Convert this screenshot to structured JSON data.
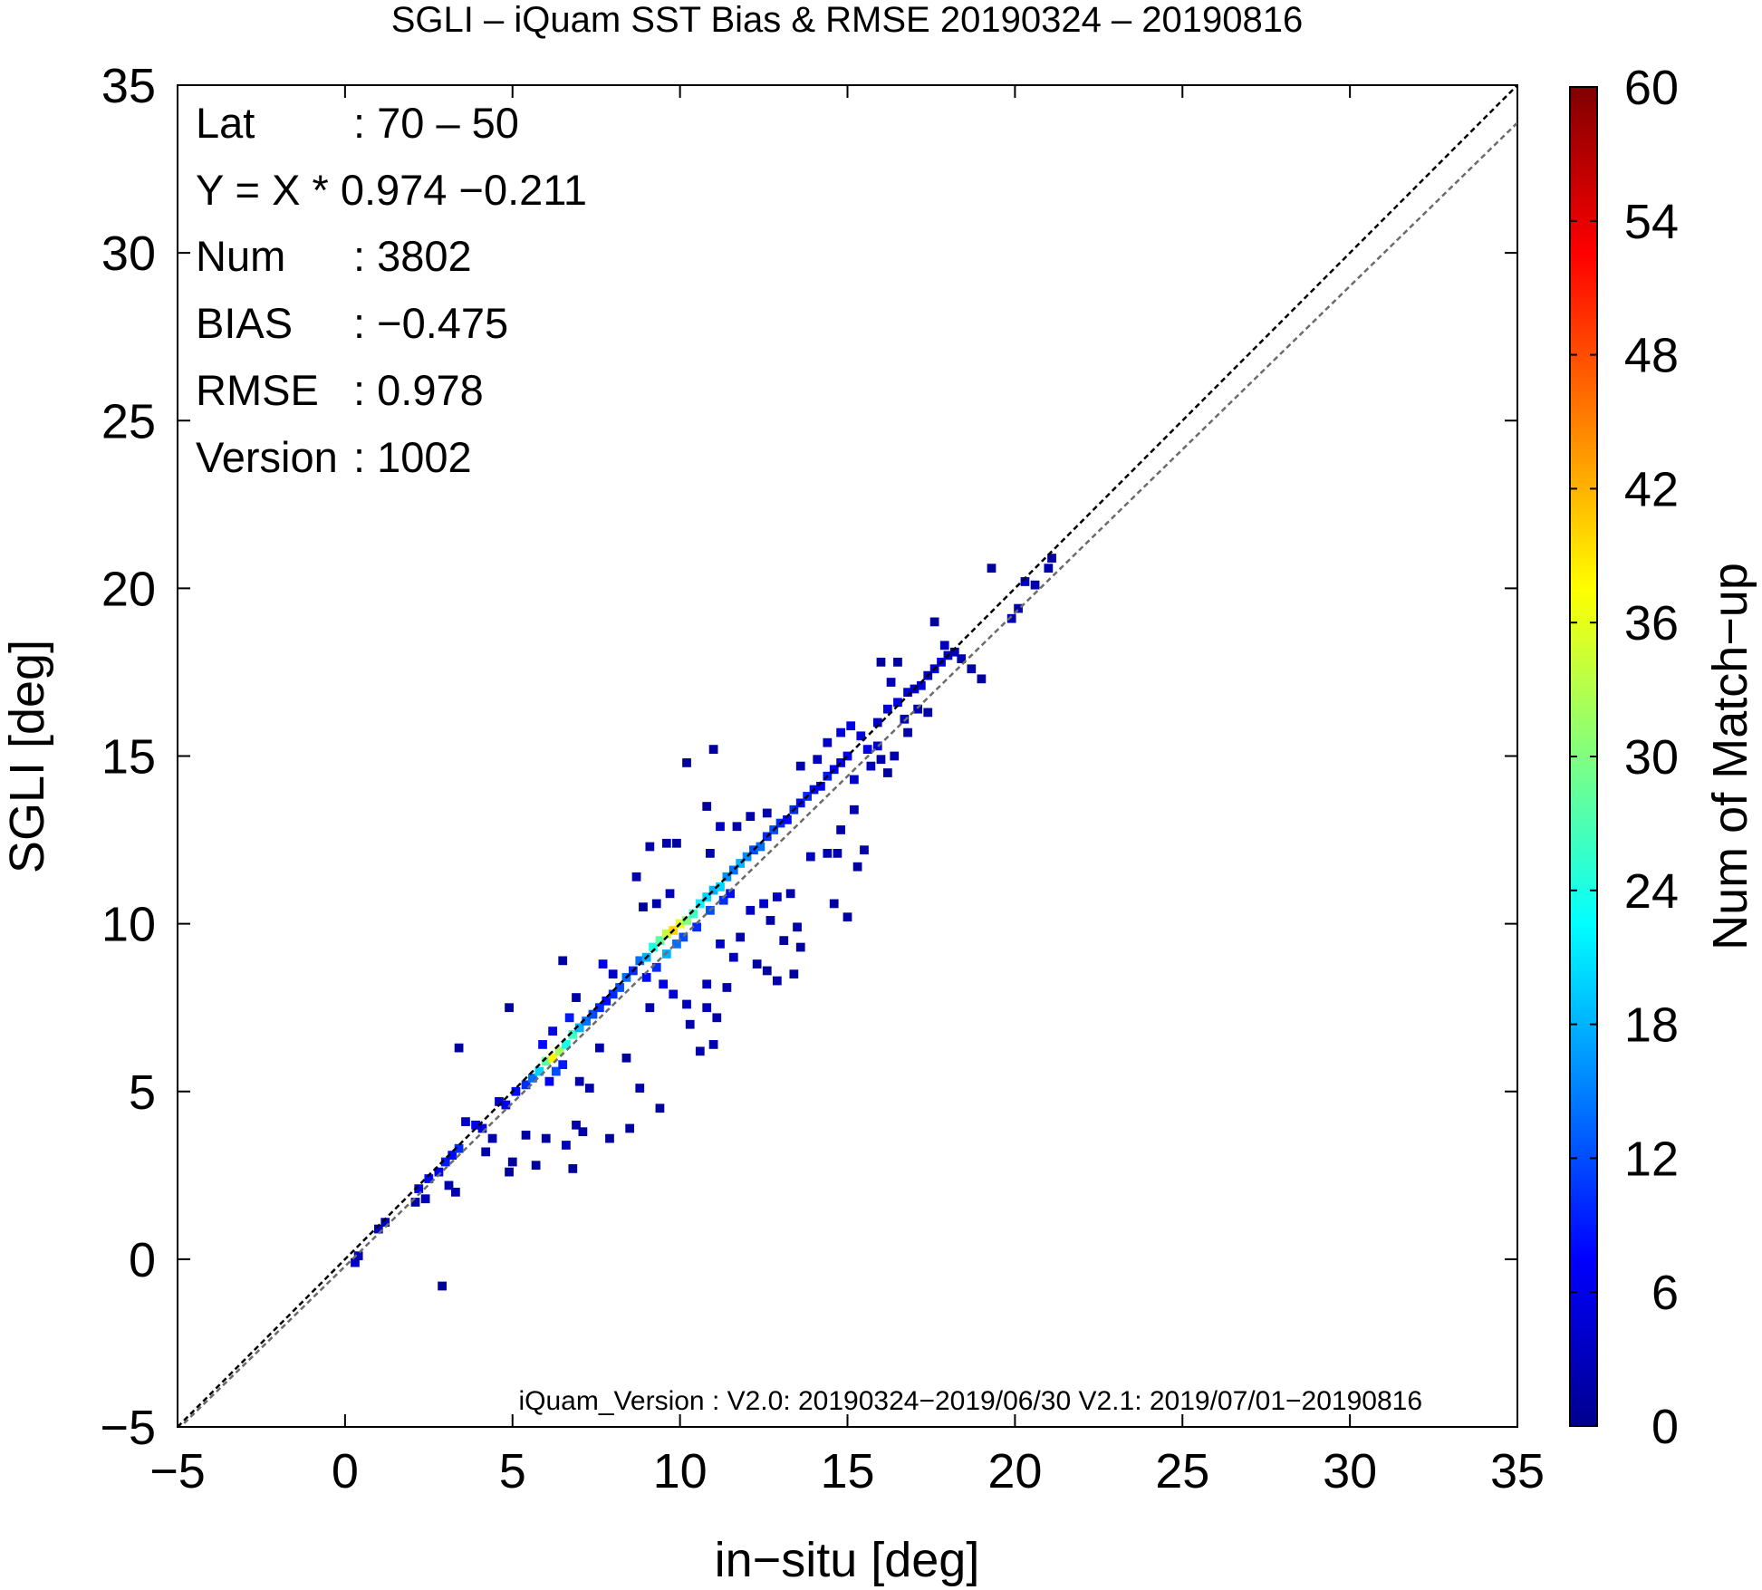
{
  "chart_data": {
    "type": "heatmap",
    "title": "SGLI – iQuam  SST Bias & RMSE 20190324 – 20190816",
    "xlabel": "in−situ [deg]",
    "ylabel": "SGLI [deg]",
    "xlim": [
      -5,
      35
    ],
    "ylim": [
      -5,
      35
    ],
    "x_ticks": [
      -5,
      0,
      5,
      10,
      15,
      20,
      25,
      30,
      35
    ],
    "y_ticks": [
      -5,
      0,
      5,
      10,
      15,
      20,
      25,
      30,
      35
    ],
    "x_tick_labels": [
      "−5",
      "0",
      "5",
      "10",
      "15",
      "20",
      "25",
      "30",
      "35"
    ],
    "y_tick_labels": [
      "−5",
      "0",
      "5",
      "10",
      "15",
      "20",
      "25",
      "30",
      "35"
    ],
    "bin_size": 0.25,
    "stats": [
      {
        "label": "Lat",
        "value": ": 70 – 50"
      },
      {
        "label": "Y = X * 0.974 −0.211",
        "value": ""
      },
      {
        "label": "Num",
        "value": ": 3802"
      },
      {
        "label": "BIAS",
        "value": ": −0.475"
      },
      {
        "label": "RMSE",
        "value": ": 0.978"
      },
      {
        "label": "Version",
        "value": ": 1002"
      }
    ],
    "regression": {
      "slope": 0.974,
      "intercept": -0.211,
      "line_color": "#6b6b6b",
      "dash": true
    },
    "identity_line": {
      "slope": 1,
      "intercept": 0,
      "line_color": "#000000",
      "dash": true
    },
    "footnote": "iQuam_Version : V2.0: 20190324−2019/06/30 V2.1: 2019/07/01−20190816",
    "colorbar": {
      "label": "Num of Match−up",
      "min": 0,
      "max": 60,
      "ticks": [
        0,
        6,
        12,
        18,
        24,
        30,
        36,
        42,
        48,
        54,
        60
      ],
      "colors": [
        "#00008f",
        "#0000ff",
        "#0080ff",
        "#00ffff",
        "#80ff80",
        "#ffff00",
        "#ff8000",
        "#ff0000",
        "#800000"
      ]
    },
    "points": [
      {
        "x": 0.3,
        "y": -0.1,
        "count": 4
      },
      {
        "x": 0.4,
        "y": 0.1,
        "count": 3
      },
      {
        "x": 1.0,
        "y": 0.9,
        "count": 4
      },
      {
        "x": 1.2,
        "y": 1.1,
        "count": 3
      },
      {
        "x": 2.9,
        "y": -0.8,
        "count": 1
      },
      {
        "x": 2.2,
        "y": 2.1,
        "count": 6
      },
      {
        "x": 2.5,
        "y": 2.4,
        "count": 8
      },
      {
        "x": 2.8,
        "y": 2.6,
        "count": 7
      },
      {
        "x": 3.0,
        "y": 2.9,
        "count": 9
      },
      {
        "x": 3.2,
        "y": 3.1,
        "count": 8
      },
      {
        "x": 3.4,
        "y": 3.3,
        "count": 10
      },
      {
        "x": 3.1,
        "y": 2.2,
        "count": 2
      },
      {
        "x": 3.3,
        "y": 2.0,
        "count": 2
      },
      {
        "x": 2.4,
        "y": 1.8,
        "count": 3
      },
      {
        "x": 2.1,
        "y": 1.7,
        "count": 2
      },
      {
        "x": 3.6,
        "y": 4.1,
        "count": 4
      },
      {
        "x": 3.9,
        "y": 4.0,
        "count": 6
      },
      {
        "x": 4.1,
        "y": 3.9,
        "count": 5
      },
      {
        "x": 3.4,
        "y": 6.3,
        "count": 1
      },
      {
        "x": 4.2,
        "y": 3.2,
        "count": 2
      },
      {
        "x": 4.4,
        "y": 3.6,
        "count": 2
      },
      {
        "x": 4.9,
        "y": 2.6,
        "count": 1
      },
      {
        "x": 5.1,
        "y": 5.0,
        "count": 8
      },
      {
        "x": 5.4,
        "y": 5.2,
        "count": 10
      },
      {
        "x": 4.8,
        "y": 4.6,
        "count": 7
      },
      {
        "x": 4.6,
        "y": 4.7,
        "count": 4
      },
      {
        "x": 4.9,
        "y": 7.5,
        "count": 1
      },
      {
        "x": 5.6,
        "y": 5.4,
        "count": 14
      },
      {
        "x": 5.8,
        "y": 5.6,
        "count": 20
      },
      {
        "x": 6.0,
        "y": 5.9,
        "count": 28
      },
      {
        "x": 6.2,
        "y": 6.0,
        "count": 38
      },
      {
        "x": 6.4,
        "y": 6.2,
        "count": 32
      },
      {
        "x": 6.6,
        "y": 6.4,
        "count": 24
      },
      {
        "x": 6.8,
        "y": 6.7,
        "count": 26
      },
      {
        "x": 7.0,
        "y": 6.9,
        "count": 18
      },
      {
        "x": 7.2,
        "y": 7.1,
        "count": 14
      },
      {
        "x": 6.3,
        "y": 5.6,
        "count": 12
      },
      {
        "x": 6.5,
        "y": 5.8,
        "count": 9
      },
      {
        "x": 6.1,
        "y": 5.3,
        "count": 7
      },
      {
        "x": 5.9,
        "y": 6.4,
        "count": 8
      },
      {
        "x": 6.2,
        "y": 6.8,
        "count": 6
      },
      {
        "x": 6.7,
        "y": 7.2,
        "count": 9
      },
      {
        "x": 7.4,
        "y": 7.3,
        "count": 12
      },
      {
        "x": 7.6,
        "y": 7.5,
        "count": 10
      },
      {
        "x": 7.8,
        "y": 7.7,
        "count": 8
      },
      {
        "x": 8.0,
        "y": 7.9,
        "count": 10
      },
      {
        "x": 8.2,
        "y": 8.1,
        "count": 12
      },
      {
        "x": 8.4,
        "y": 8.4,
        "count": 14
      },
      {
        "x": 8.6,
        "y": 8.6,
        "count": 10
      },
      {
        "x": 7.0,
        "y": 5.3,
        "count": 2
      },
      {
        "x": 7.3,
        "y": 5.1,
        "count": 2
      },
      {
        "x": 7.6,
        "y": 6.3,
        "count": 2
      },
      {
        "x": 6.9,
        "y": 4.0,
        "count": 2
      },
      {
        "x": 6.6,
        "y": 3.4,
        "count": 3
      },
      {
        "x": 7.1,
        "y": 3.8,
        "count": 1
      },
      {
        "x": 6.8,
        "y": 2.7,
        "count": 1
      },
      {
        "x": 6.0,
        "y": 3.6,
        "count": 1
      },
      {
        "x": 5.4,
        "y": 3.7,
        "count": 1
      },
      {
        "x": 5.7,
        "y": 2.8,
        "count": 1
      },
      {
        "x": 5.0,
        "y": 2.9,
        "count": 1
      },
      {
        "x": 7.9,
        "y": 3.6,
        "count": 1
      },
      {
        "x": 8.8,
        "y": 5.1,
        "count": 2
      },
      {
        "x": 9.4,
        "y": 4.5,
        "count": 1
      },
      {
        "x": 8.5,
        "y": 3.9,
        "count": 1
      },
      {
        "x": 8.4,
        "y": 6.0,
        "count": 1
      },
      {
        "x": 6.5,
        "y": 8.9,
        "count": 1
      },
      {
        "x": 6.9,
        "y": 7.8,
        "count": 2
      },
      {
        "x": 7.7,
        "y": 8.8,
        "count": 6
      },
      {
        "x": 8.0,
        "y": 8.5,
        "count": 4
      },
      {
        "x": 8.8,
        "y": 8.9,
        "count": 14
      },
      {
        "x": 9.0,
        "y": 9.0,
        "count": 18
      },
      {
        "x": 9.2,
        "y": 9.3,
        "count": 24
      },
      {
        "x": 9.4,
        "y": 9.5,
        "count": 28
      },
      {
        "x": 9.6,
        "y": 9.7,
        "count": 34
      },
      {
        "x": 9.8,
        "y": 9.8,
        "count": 40
      },
      {
        "x": 10.0,
        "y": 10.0,
        "count": 36
      },
      {
        "x": 10.2,
        "y": 10.1,
        "count": 30
      },
      {
        "x": 10.4,
        "y": 10.3,
        "count": 26
      },
      {
        "x": 10.6,
        "y": 10.6,
        "count": 22
      },
      {
        "x": 10.8,
        "y": 10.8,
        "count": 20
      },
      {
        "x": 11.0,
        "y": 11.0,
        "count": 18
      },
      {
        "x": 11.2,
        "y": 11.1,
        "count": 20
      },
      {
        "x": 11.4,
        "y": 11.4,
        "count": 16
      },
      {
        "x": 11.6,
        "y": 11.6,
        "count": 14
      },
      {
        "x": 11.8,
        "y": 11.8,
        "count": 18
      },
      {
        "x": 12.0,
        "y": 12.0,
        "count": 16
      },
      {
        "x": 12.2,
        "y": 12.2,
        "count": 12
      },
      {
        "x": 12.4,
        "y": 12.3,
        "count": 14
      },
      {
        "x": 12.6,
        "y": 12.6,
        "count": 10
      },
      {
        "x": 12.8,
        "y": 12.8,
        "count": 12
      },
      {
        "x": 13.0,
        "y": 13.0,
        "count": 10
      },
      {
        "x": 13.2,
        "y": 13.1,
        "count": 8
      },
      {
        "x": 13.4,
        "y": 13.4,
        "count": 10
      },
      {
        "x": 13.6,
        "y": 13.6,
        "count": 8
      },
      {
        "x": 13.8,
        "y": 13.8,
        "count": 10
      },
      {
        "x": 14.0,
        "y": 14.0,
        "count": 8
      },
      {
        "x": 14.2,
        "y": 14.1,
        "count": 7
      },
      {
        "x": 14.4,
        "y": 14.4,
        "count": 9
      },
      {
        "x": 14.6,
        "y": 14.6,
        "count": 7
      },
      {
        "x": 14.8,
        "y": 14.8,
        "count": 6
      },
      {
        "x": 15.0,
        "y": 15.0,
        "count": 7
      },
      {
        "x": 9.6,
        "y": 9.1,
        "count": 18
      },
      {
        "x": 9.9,
        "y": 9.4,
        "count": 14
      },
      {
        "x": 10.1,
        "y": 9.6,
        "count": 12
      },
      {
        "x": 10.5,
        "y": 9.9,
        "count": 10
      },
      {
        "x": 10.9,
        "y": 10.4,
        "count": 12
      },
      {
        "x": 11.3,
        "y": 10.7,
        "count": 10
      },
      {
        "x": 11.5,
        "y": 10.9,
        "count": 8
      },
      {
        "x": 9.3,
        "y": 8.7,
        "count": 10
      },
      {
        "x": 9.0,
        "y": 8.4,
        "count": 8
      },
      {
        "x": 9.5,
        "y": 8.2,
        "count": 6
      },
      {
        "x": 9.8,
        "y": 7.9,
        "count": 4
      },
      {
        "x": 10.2,
        "y": 7.6,
        "count": 3
      },
      {
        "x": 9.1,
        "y": 7.5,
        "count": 2
      },
      {
        "x": 10.8,
        "y": 7.5,
        "count": 3
      },
      {
        "x": 11.1,
        "y": 7.2,
        "count": 2
      },
      {
        "x": 11.0,
        "y": 6.4,
        "count": 2
      },
      {
        "x": 10.6,
        "y": 6.2,
        "count": 2
      },
      {
        "x": 10.3,
        "y": 7.0,
        "count": 2
      },
      {
        "x": 10.8,
        "y": 8.2,
        "count": 3
      },
      {
        "x": 11.4,
        "y": 8.1,
        "count": 2
      },
      {
        "x": 11.6,
        "y": 9.0,
        "count": 3
      },
      {
        "x": 11.2,
        "y": 9.4,
        "count": 4
      },
      {
        "x": 11.8,
        "y": 9.6,
        "count": 2
      },
      {
        "x": 12.3,
        "y": 8.8,
        "count": 2
      },
      {
        "x": 12.6,
        "y": 8.6,
        "count": 1
      },
      {
        "x": 12.9,
        "y": 8.3,
        "count": 2
      },
      {
        "x": 13.4,
        "y": 8.5,
        "count": 1
      },
      {
        "x": 12.1,
        "y": 10.4,
        "count": 4
      },
      {
        "x": 12.5,
        "y": 10.6,
        "count": 4
      },
      {
        "x": 12.9,
        "y": 10.8,
        "count": 3
      },
      {
        "x": 13.3,
        "y": 10.9,
        "count": 2
      },
      {
        "x": 12.7,
        "y": 10.1,
        "count": 2
      },
      {
        "x": 13.5,
        "y": 9.9,
        "count": 2
      },
      {
        "x": 13.6,
        "y": 9.3,
        "count": 1
      },
      {
        "x": 13.1,
        "y": 9.5,
        "count": 1
      },
      {
        "x": 14.6,
        "y": 10.6,
        "count": 1
      },
      {
        "x": 15.0,
        "y": 10.2,
        "count": 1
      },
      {
        "x": 14.4,
        "y": 12.1,
        "count": 2
      },
      {
        "x": 13.9,
        "y": 12.0,
        "count": 3
      },
      {
        "x": 14.7,
        "y": 12.1,
        "count": 2
      },
      {
        "x": 15.5,
        "y": 12.2,
        "count": 2
      },
      {
        "x": 15.3,
        "y": 11.7,
        "count": 1
      },
      {
        "x": 15.2,
        "y": 13.4,
        "count": 2
      },
      {
        "x": 14.8,
        "y": 12.8,
        "count": 2
      },
      {
        "x": 8.9,
        "y": 10.5,
        "count": 1
      },
      {
        "x": 9.3,
        "y": 10.6,
        "count": 2
      },
      {
        "x": 9.7,
        "y": 10.9,
        "count": 3
      },
      {
        "x": 8.7,
        "y": 11.4,
        "count": 2
      },
      {
        "x": 9.1,
        "y": 12.3,
        "count": 2
      },
      {
        "x": 9.6,
        "y": 12.4,
        "count": 2
      },
      {
        "x": 9.9,
        "y": 12.4,
        "count": 1
      },
      {
        "x": 10.9,
        "y": 12.1,
        "count": 2
      },
      {
        "x": 11.2,
        "y": 12.9,
        "count": 3
      },
      {
        "x": 11.7,
        "y": 12.9,
        "count": 2
      },
      {
        "x": 12.1,
        "y": 13.2,
        "count": 2
      },
      {
        "x": 12.6,
        "y": 13.3,
        "count": 2
      },
      {
        "x": 10.8,
        "y": 13.5,
        "count": 1
      },
      {
        "x": 10.2,
        "y": 14.8,
        "count": 1
      },
      {
        "x": 11.0,
        "y": 15.2,
        "count": 1
      },
      {
        "x": 13.6,
        "y": 14.7,
        "count": 2
      },
      {
        "x": 14.1,
        "y": 14.9,
        "count": 3
      },
      {
        "x": 14.4,
        "y": 15.4,
        "count": 4
      },
      {
        "x": 14.8,
        "y": 15.7,
        "count": 5
      },
      {
        "x": 15.1,
        "y": 15.9,
        "count": 6
      },
      {
        "x": 15.4,
        "y": 15.6,
        "count": 5
      },
      {
        "x": 15.6,
        "y": 15.2,
        "count": 6
      },
      {
        "x": 15.9,
        "y": 15.3,
        "count": 4
      },
      {
        "x": 15.2,
        "y": 14.3,
        "count": 4
      },
      {
        "x": 15.7,
        "y": 14.7,
        "count": 3
      },
      {
        "x": 16.0,
        "y": 14.9,
        "count": 2
      },
      {
        "x": 16.4,
        "y": 15.0,
        "count": 2
      },
      {
        "x": 16.2,
        "y": 14.5,
        "count": 1
      },
      {
        "x": 15.9,
        "y": 16.0,
        "count": 4
      },
      {
        "x": 16.2,
        "y": 16.4,
        "count": 5
      },
      {
        "x": 16.5,
        "y": 16.6,
        "count": 6
      },
      {
        "x": 16.8,
        "y": 16.9,
        "count": 5
      },
      {
        "x": 17.0,
        "y": 17.0,
        "count": 4
      },
      {
        "x": 17.2,
        "y": 17.1,
        "count": 5
      },
      {
        "x": 17.4,
        "y": 17.4,
        "count": 4
      },
      {
        "x": 17.6,
        "y": 17.6,
        "count": 5
      },
      {
        "x": 17.8,
        "y": 17.8,
        "count": 6
      },
      {
        "x": 18.0,
        "y": 18.0,
        "count": 4
      },
      {
        "x": 17.9,
        "y": 18.3,
        "count": 3
      },
      {
        "x": 18.2,
        "y": 18.1,
        "count": 3
      },
      {
        "x": 18.4,
        "y": 17.9,
        "count": 2
      },
      {
        "x": 16.7,
        "y": 16.1,
        "count": 3
      },
      {
        "x": 17.1,
        "y": 16.4,
        "count": 2
      },
      {
        "x": 16.3,
        "y": 17.2,
        "count": 2
      },
      {
        "x": 16.5,
        "y": 17.8,
        "count": 1
      },
      {
        "x": 16.0,
        "y": 17.8,
        "count": 1
      },
      {
        "x": 17.6,
        "y": 19.0,
        "count": 1
      },
      {
        "x": 18.7,
        "y": 17.6,
        "count": 2
      },
      {
        "x": 19.0,
        "y": 17.3,
        "count": 1
      },
      {
        "x": 17.4,
        "y": 16.3,
        "count": 2
      },
      {
        "x": 16.8,
        "y": 15.7,
        "count": 2
      },
      {
        "x": 19.9,
        "y": 19.1,
        "count": 3
      },
      {
        "x": 20.1,
        "y": 19.4,
        "count": 2
      },
      {
        "x": 20.3,
        "y": 20.2,
        "count": 3
      },
      {
        "x": 20.6,
        "y": 20.1,
        "count": 2
      },
      {
        "x": 21.0,
        "y": 20.6,
        "count": 2
      },
      {
        "x": 21.1,
        "y": 20.9,
        "count": 1
      },
      {
        "x": 19.3,
        "y": 20.6,
        "count": 1
      }
    ]
  }
}
